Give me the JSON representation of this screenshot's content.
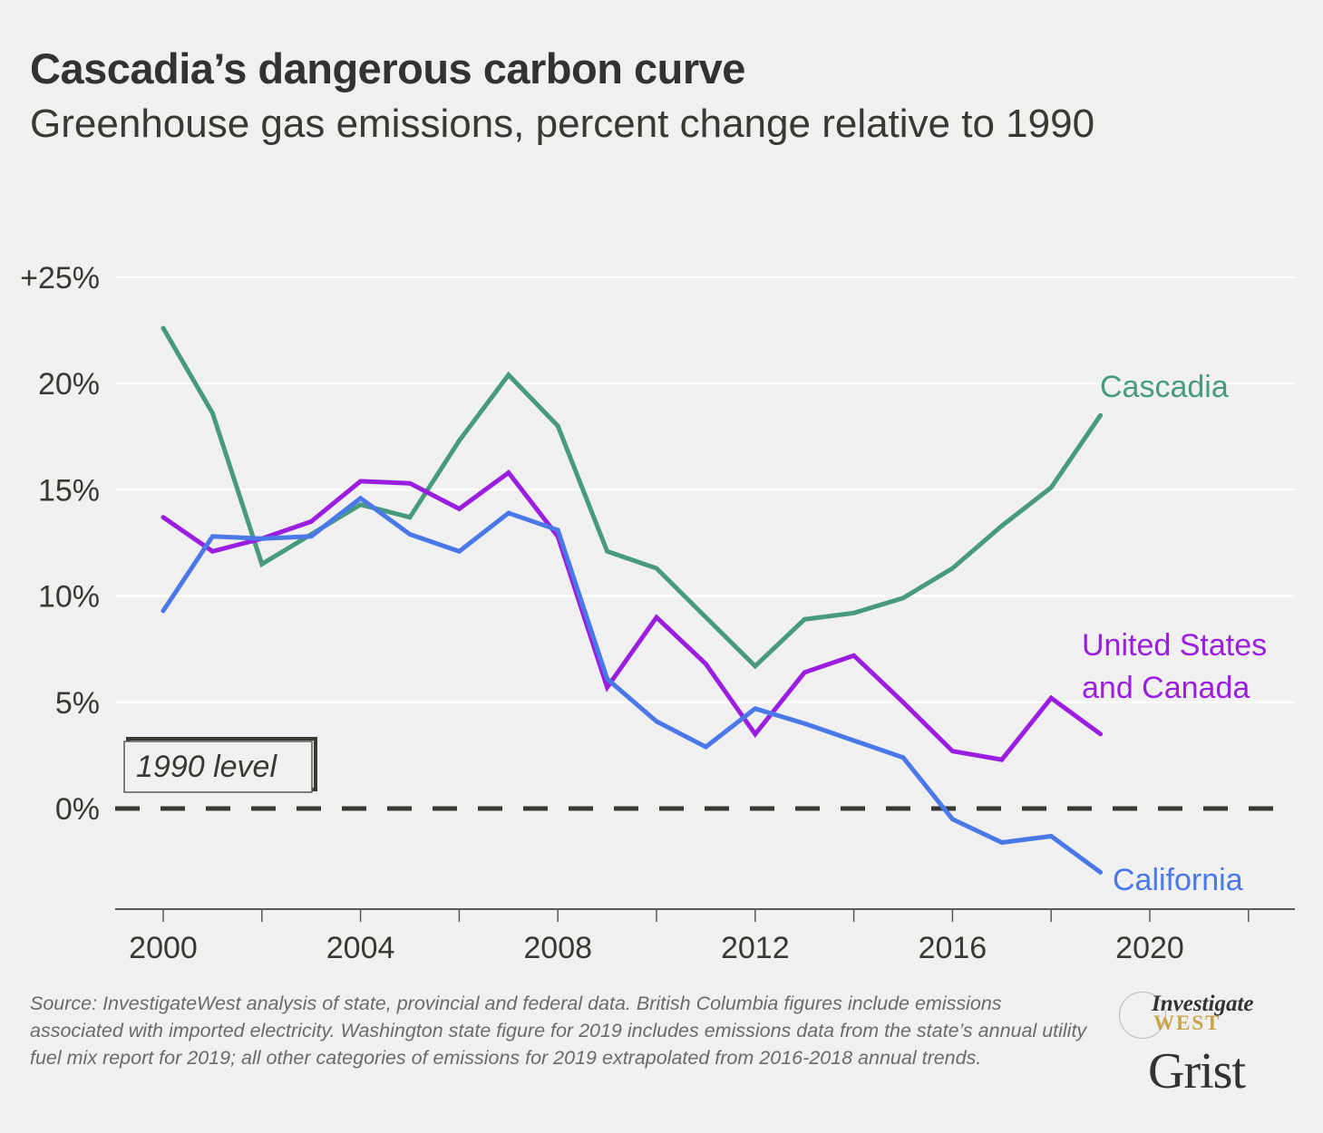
{
  "header": {
    "title": "Cascadia’s dangerous carbon curve",
    "subtitle": "Greenhouse gas emissions, percent change relative to 1990"
  },
  "chart_data": {
    "type": "line",
    "title": "Cascadia’s dangerous carbon curve",
    "subtitle": "Greenhouse gas emissions, percent change relative to 1990",
    "xlabel": "",
    "ylabel": "",
    "x": [
      2000,
      2001,
      2002,
      2003,
      2004,
      2005,
      2006,
      2007,
      2008,
      2009,
      2010,
      2011,
      2012,
      2013,
      2014,
      2015,
      2016,
      2017,
      2018,
      2019
    ],
    "xlim": [
      1999,
      2023
    ],
    "ylim": [
      -5,
      27
    ],
    "x_ticks": [
      2000,
      2002,
      2004,
      2006,
      2008,
      2010,
      2012,
      2014,
      2016,
      2018,
      2020,
      2022
    ],
    "x_tick_labels": [
      "2000",
      "",
      "2004",
      "",
      "2008",
      "",
      "2012",
      "",
      "2016",
      "",
      "2020",
      ""
    ],
    "y_ticks": [
      0,
      5,
      10,
      15,
      20,
      25
    ],
    "y_tick_labels": [
      "0%",
      "5%",
      "10%",
      "15%",
      "20%",
      "+25%"
    ],
    "grid": true,
    "series": [
      {
        "name": "Cascadia",
        "label": "Cascadia",
        "color": "#479a7b",
        "values": [
          22.6,
          18.6,
          11.5,
          12.9,
          14.3,
          13.7,
          17.3,
          20.4,
          18.0,
          12.1,
          11.3,
          9.0,
          6.7,
          8.9,
          9.2,
          9.9,
          11.3,
          13.3,
          15.1,
          18.5
        ]
      },
      {
        "name": "United States and Canada",
        "label_lines": [
          "United States",
          "and Canada"
        ],
        "color": "#9b1ee0",
        "values": [
          13.7,
          12.1,
          12.7,
          13.5,
          15.4,
          15.3,
          14.1,
          15.8,
          12.8,
          5.7,
          9.0,
          6.8,
          3.5,
          6.4,
          7.2,
          5.0,
          2.7,
          2.3,
          5.2,
          3.5
        ]
      },
      {
        "name": "California",
        "label": "California",
        "color": "#4a78e8",
        "values": [
          9.3,
          12.8,
          12.7,
          12.8,
          14.6,
          12.9,
          12.1,
          13.9,
          13.1,
          6.1,
          4.1,
          2.9,
          4.7,
          4.0,
          3.2,
          2.4,
          -0.5,
          -1.6,
          -1.3,
          -3.0
        ]
      }
    ],
    "annotations": [
      {
        "text": "1990 level",
        "at_value": 0,
        "style": "dashed reference line"
      }
    ]
  },
  "footnote": "Source: InvestigateWest analysis of state, provincial and federal data. British Columbia figures include emissions associated with imported electricity. Washington state figure for 2019 includes emissions data from the state’s annual utility fuel mix report for 2019; all other categories of emissions for 2019 extrapolated from 2016-2018 annual trends.",
  "logos": {
    "investigate_top": "Investigate",
    "investigate_bottom": "WEST",
    "grist": "Grist"
  }
}
